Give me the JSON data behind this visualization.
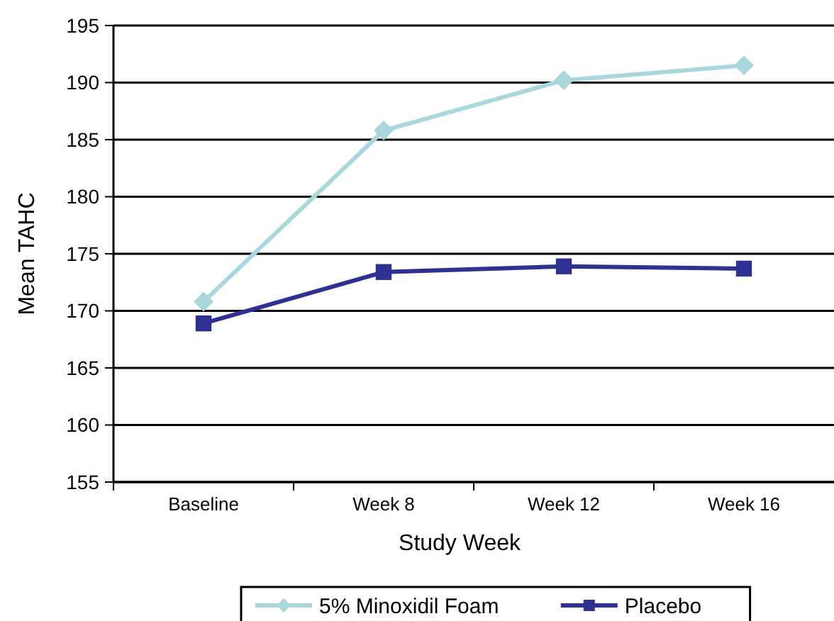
{
  "chart_data": {
    "type": "line",
    "xlabel": "Study Week",
    "ylabel": "Mean TAHC",
    "categories": [
      "Baseline",
      "Week 8",
      "Week 12",
      "Week 16"
    ],
    "series": [
      {
        "name": "5% Minoxidil Foam",
        "color": "#a8d8dc",
        "marker": "diamond",
        "values": [
          170.8,
          185.8,
          190.2,
          191.5
        ]
      },
      {
        "name": "Placebo",
        "color": "#2e3192",
        "marker": "square",
        "values": [
          168.9,
          173.4,
          173.9,
          173.7
        ]
      }
    ],
    "ylim": [
      155,
      195
    ],
    "yticks": [
      155,
      160,
      165,
      170,
      175,
      180,
      185,
      190,
      195
    ],
    "grid": "y",
    "legend": "bottom"
  }
}
